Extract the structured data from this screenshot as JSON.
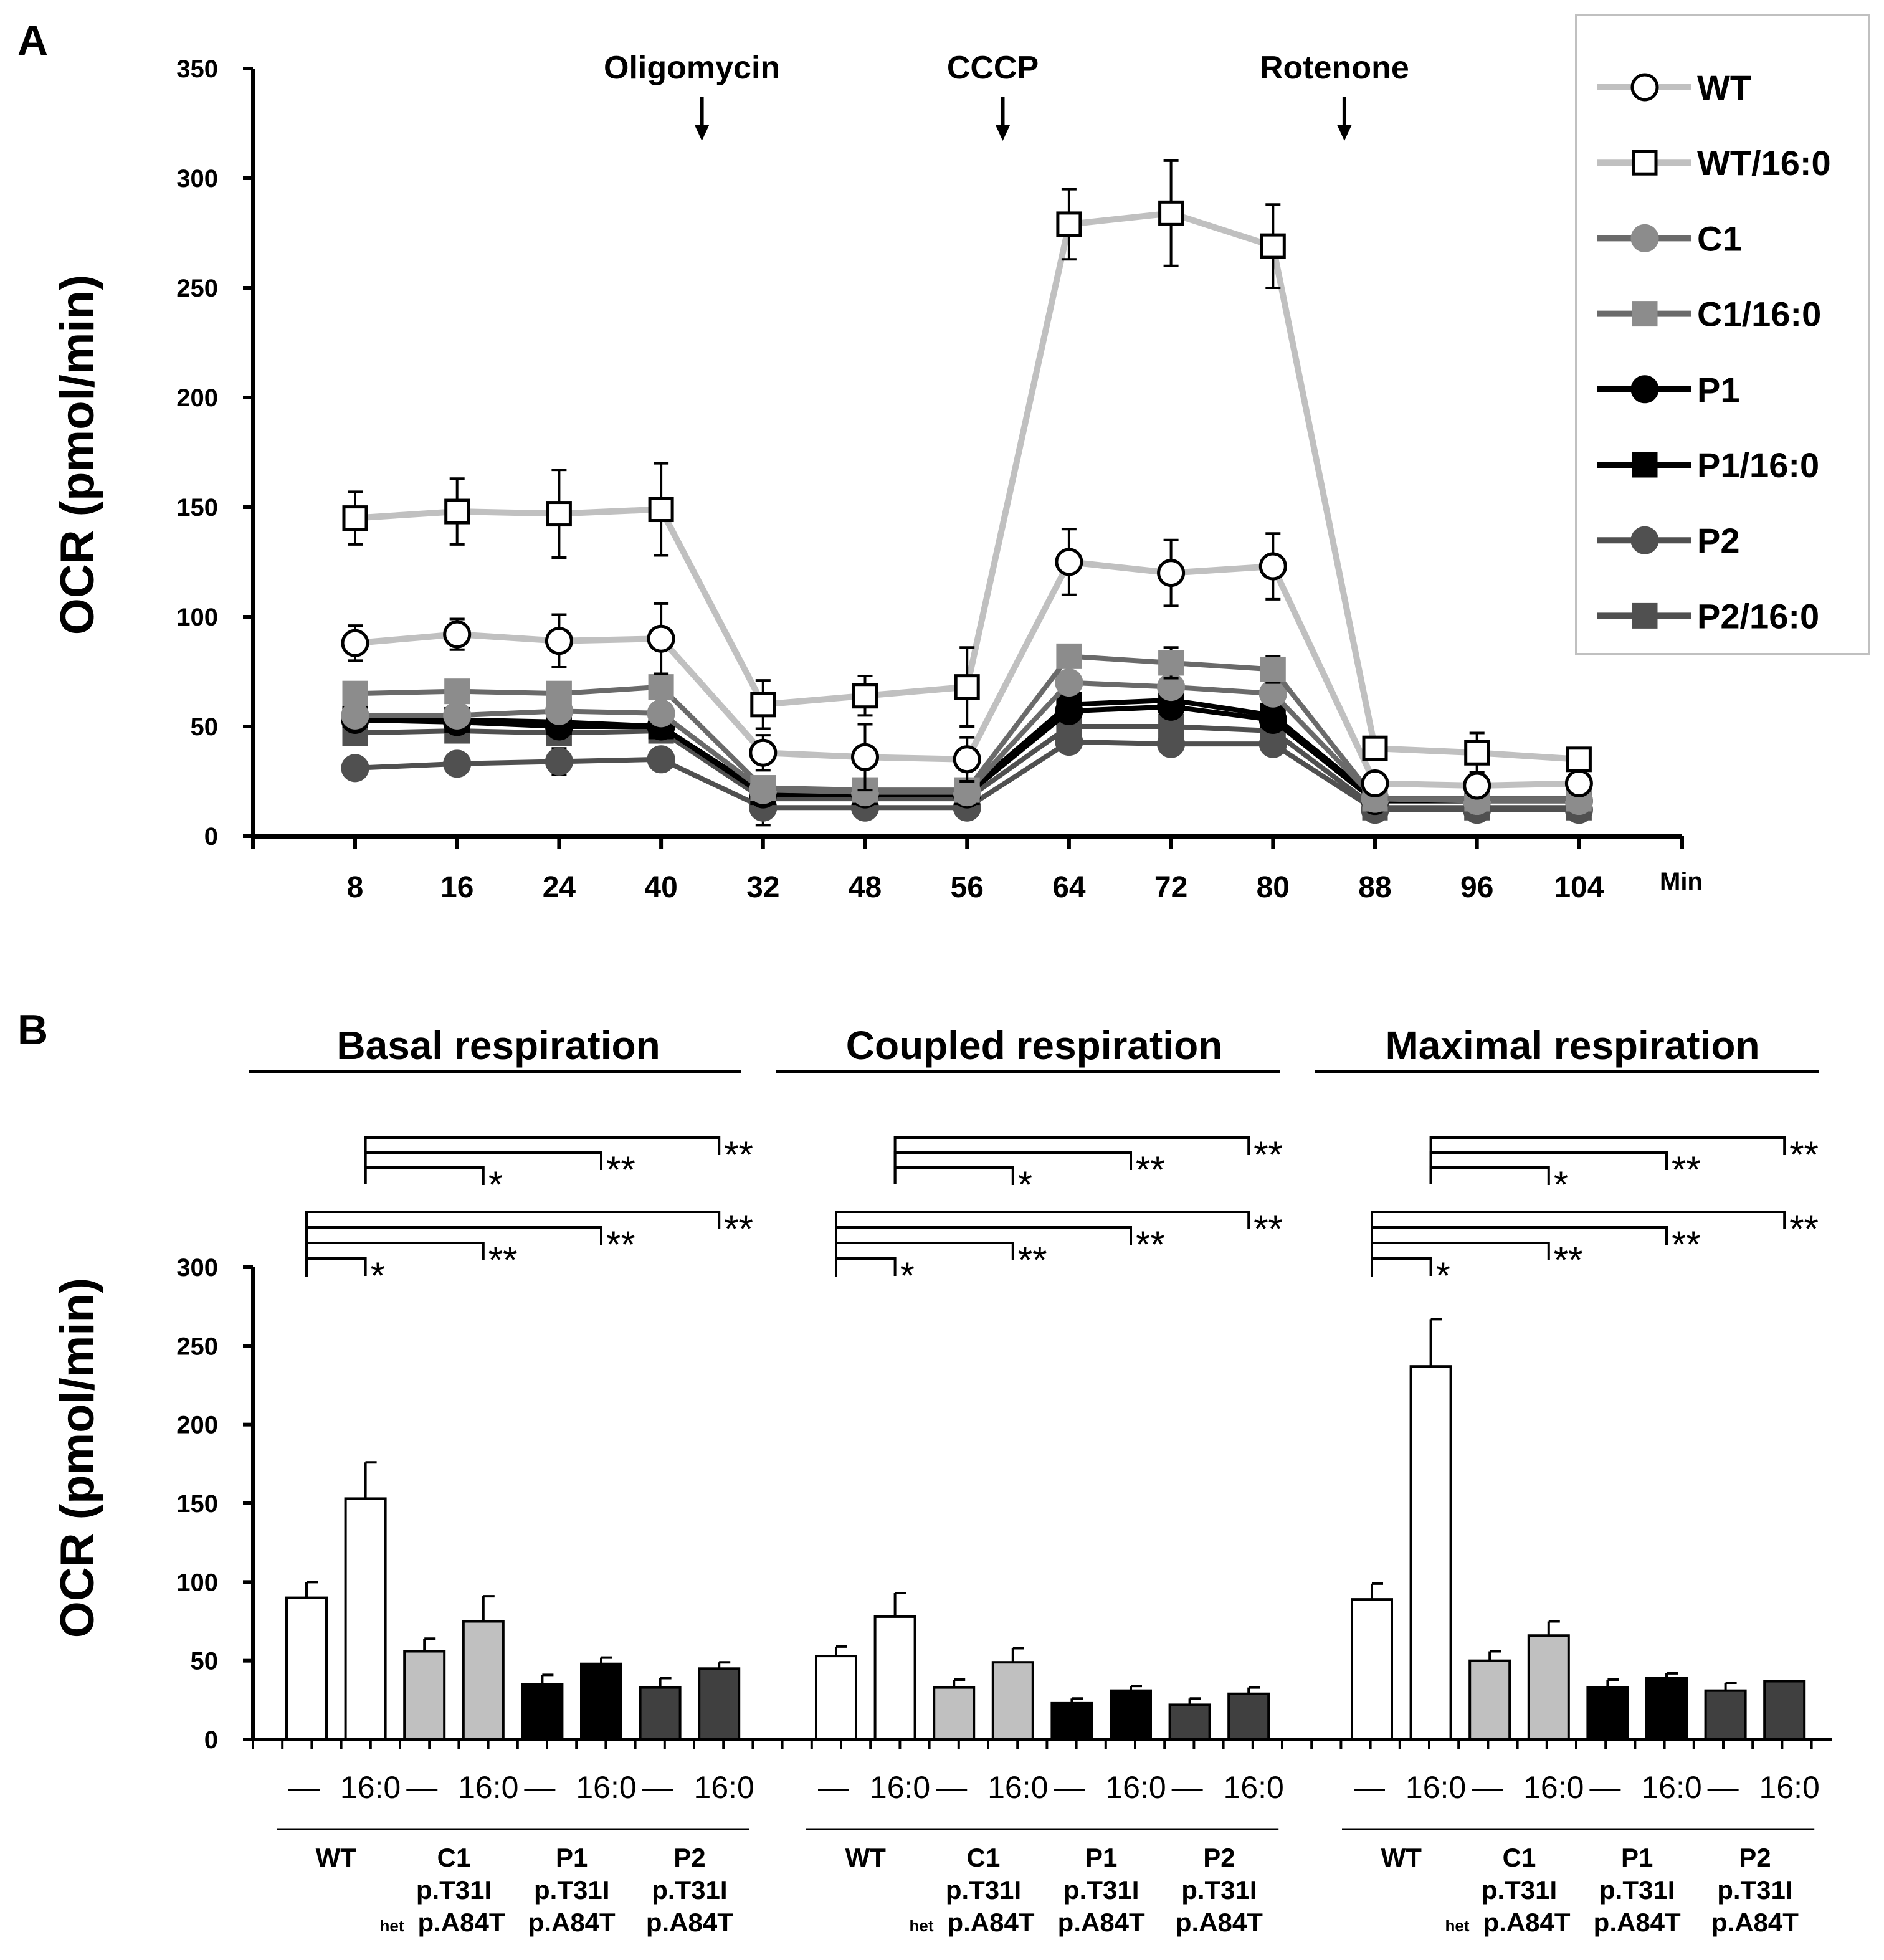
{
  "chart_data": [
    {
      "type": "line",
      "panel_label": "A",
      "ylabel": "OCR (pmol/min)",
      "xlabel": "Min",
      "ylim": [
        0,
        350
      ],
      "yticks": [
        0,
        50,
        100,
        150,
        200,
        250,
        300,
        350
      ],
      "categories": [
        "8",
        "16",
        "24",
        "40",
        "32",
        "48",
        "56",
        "64",
        "72",
        "80",
        "88",
        "96",
        "104"
      ],
      "annotations": [
        {
          "text": "Oligomycin",
          "after_index": 3.4
        },
        {
          "text": "CCCP",
          "after_index": 6.35
        },
        {
          "text": "Rotenone",
          "after_index": 9.7
        }
      ],
      "legend_position": "top-right",
      "series": [
        {
          "name": "WT",
          "marker": "circle",
          "fill": "#ffffff",
          "line": "#c0c0c0",
          "values": [
            88,
            92,
            89,
            90,
            38,
            36,
            35,
            125,
            120,
            123,
            24,
            23,
            24
          ],
          "err": [
            8,
            7,
            12,
            16,
            8,
            15,
            10,
            15,
            15,
            15,
            4,
            4,
            3
          ]
        },
        {
          "name": "WT/16:0",
          "marker": "square",
          "fill": "#ffffff",
          "line": "#c0c0c0",
          "values": [
            145,
            148,
            147,
            149,
            60,
            64,
            68,
            279,
            284,
            269,
            40,
            38,
            35
          ],
          "err": [
            12,
            15,
            20,
            21,
            11,
            9,
            18,
            16,
            24,
            19,
            5,
            9,
            3
          ]
        },
        {
          "name": "C1",
          "marker": "circle",
          "fill": "#8c8c8c",
          "line": "#6a6a6a",
          "values": [
            55,
            55,
            57,
            56,
            21,
            20,
            20,
            70,
            68,
            65,
            17,
            16,
            16
          ],
          "err": [
            0,
            0,
            0,
            0,
            0,
            0,
            0,
            0,
            0,
            0,
            0,
            0,
            0
          ]
        },
        {
          "name": "C1/16:0",
          "marker": "square",
          "fill": "#8c8c8c",
          "line": "#6a6a6a",
          "values": [
            65,
            66,
            65,
            68,
            22,
            21,
            21,
            82,
            79,
            76,
            17,
            17,
            17
          ],
          "err": [
            0,
            0,
            0,
            0,
            0,
            0,
            0,
            0,
            7,
            6,
            0,
            0,
            0
          ]
        },
        {
          "name": "P1",
          "marker": "circle",
          "fill": "#000000",
          "line": "#000000",
          "values": [
            53,
            52,
            50,
            50,
            19,
            19,
            19,
            57,
            59,
            53,
            16,
            16,
            16
          ],
          "err": [
            0,
            0,
            0,
            0,
            0,
            0,
            0,
            0,
            0,
            0,
            0,
            0,
            0
          ]
        },
        {
          "name": "P1/16:0",
          "marker": "square",
          "fill": "#000000",
          "line": "#000000",
          "values": [
            55,
            53,
            52,
            50,
            20,
            20,
            20,
            60,
            62,
            55,
            17,
            17,
            17
          ],
          "err": [
            0,
            0,
            0,
            0,
            0,
            0,
            0,
            0,
            0,
            0,
            0,
            0,
            0
          ]
        },
        {
          "name": "P2",
          "marker": "circle",
          "fill": "#505050",
          "line": "#505050",
          "values": [
            31,
            33,
            34,
            35,
            13,
            13,
            13,
            43,
            42,
            42,
            12,
            12,
            12
          ],
          "err": [
            4,
            0,
            6,
            5,
            8,
            0,
            0,
            0,
            0,
            0,
            0,
            0,
            0
          ]
        },
        {
          "name": "P2/16:0",
          "marker": "square",
          "fill": "#505050",
          "line": "#505050",
          "values": [
            47,
            48,
            47,
            48,
            17,
            17,
            17,
            50,
            50,
            48,
            13,
            13,
            13
          ],
          "err": [
            0,
            0,
            0,
            0,
            0,
            0,
            0,
            0,
            0,
            0,
            0,
            0,
            0
          ]
        }
      ]
    },
    {
      "type": "bar",
      "panel_label": "B",
      "ylabel": "OCR (pmol/min)",
      "ylim": [
        0,
        300
      ],
      "yticks": [
        0,
        50,
        100,
        150,
        200,
        250,
        300
      ],
      "treatment_labels": [
        "—",
        "16:0"
      ],
      "genotypes": [
        {
          "lines": [
            "WT"
          ]
        },
        {
          "lines": [
            "C1",
            "p.T31I",
            "p.A84T"
          ],
          "prefix": "het"
        },
        {
          "lines": [
            "P1",
            "p.T31I",
            "p.A84T"
          ]
        },
        {
          "lines": [
            "P2",
            "p.T31I",
            "p.A84T"
          ]
        }
      ],
      "bar_colors": [
        "#ffffff",
        "#ffffff",
        "#c0c0c0",
        "#c0c0c0",
        "#000000",
        "#000000",
        "#404040",
        "#404040"
      ],
      "groups": [
        {
          "title": "Basal respiration",
          "values": [
            90,
            153,
            56,
            75,
            35,
            48,
            33,
            45
          ],
          "err": [
            10,
            23,
            8,
            16,
            6,
            4,
            6,
            4
          ]
        },
        {
          "title": "Coupled respiration",
          "values": [
            53,
            78,
            33,
            49,
            23,
            31,
            22,
            29
          ],
          "err": [
            6,
            15,
            5,
            9,
            3,
            3,
            4,
            4
          ]
        },
        {
          "title": "Maximal respiration",
          "values": [
            89,
            237,
            50,
            66,
            33,
            39,
            31,
            37
          ],
          "err": [
            10,
            30,
            6,
            9,
            5,
            3,
            5,
            0
          ]
        }
      ],
      "significance": {
        "vs_WT": [
          {
            "to": 1,
            "label": "*"
          },
          {
            "to": 3,
            "label": "**"
          },
          {
            "to": 5,
            "label": "**"
          },
          {
            "to": 7,
            "label": "**"
          }
        ],
        "vs_WT_16_0": [
          {
            "to": 3,
            "label": "*"
          },
          {
            "to": 5,
            "label": "**"
          },
          {
            "to": 7,
            "label": "**"
          }
        ]
      }
    }
  ]
}
